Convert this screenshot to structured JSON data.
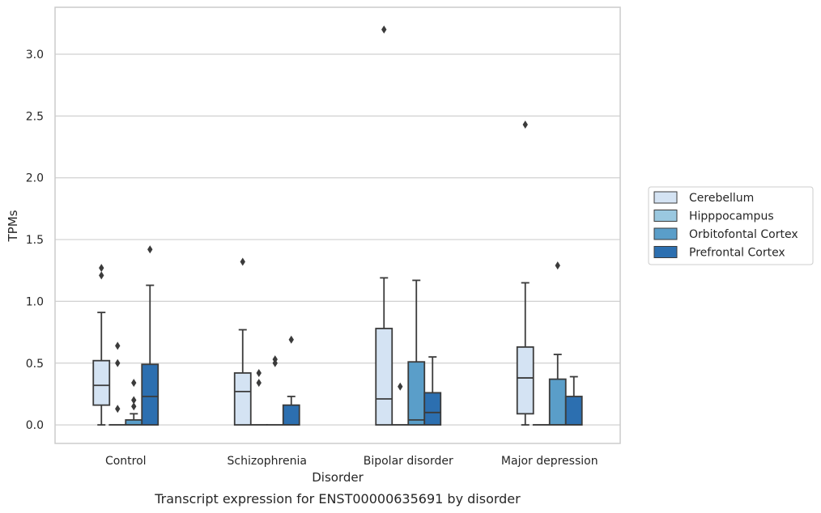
{
  "chart_data": {
    "type": "box",
    "title": "Transcript expression for ENST00000635691 by disorder",
    "xlabel": "Disorder",
    "ylabel": "TPMs",
    "ylim": [
      -0.15,
      3.38
    ],
    "yticks": [
      0.0,
      0.5,
      1.0,
      1.5,
      2.0,
      2.5,
      3.0
    ],
    "ytick_labels": [
      "0.0",
      "0.5",
      "1.0",
      "1.5",
      "2.0",
      "2.5",
      "3.0"
    ],
    "grid": "horizontal",
    "legend_position": "right",
    "categories": [
      "Control",
      "Schizophrenia",
      "Bipolar disorder",
      "Major depression"
    ],
    "series": [
      {
        "name": "Cerebellum",
        "color": "#d4e3f3",
        "boxes": [
          {
            "whislo": 0.0,
            "q1": 0.16,
            "med": 0.32,
            "q3": 0.52,
            "whishi": 0.91,
            "fliers": [
              1.21,
              1.27
            ]
          },
          {
            "whislo": 0.0,
            "q1": 0.0,
            "med": 0.27,
            "q3": 0.42,
            "whishi": 0.77,
            "fliers": [
              1.32
            ]
          },
          {
            "whislo": 0.0,
            "q1": 0.0,
            "med": 0.21,
            "q3": 0.78,
            "whishi": 1.19,
            "fliers": [
              3.2
            ]
          },
          {
            "whislo": 0.0,
            "q1": 0.09,
            "med": 0.38,
            "q3": 0.63,
            "whishi": 1.15,
            "fliers": [
              2.43
            ]
          }
        ]
      },
      {
        "name": "Hipppocampus",
        "color": "#9ac8e0",
        "boxes": [
          {
            "whislo": 0.0,
            "q1": 0.0,
            "med": 0.0,
            "q3": 0.0,
            "whishi": 0.0,
            "fliers": [
              0.13,
              0.5,
              0.64
            ]
          },
          {
            "whislo": 0.0,
            "q1": 0.0,
            "med": 0.0,
            "q3": 0.0,
            "whishi": 0.0,
            "fliers": [
              0.34,
              0.42
            ]
          },
          {
            "whislo": 0.0,
            "q1": 0.0,
            "med": 0.0,
            "q3": 0.0,
            "whishi": 0.0,
            "fliers": [
              0.31
            ]
          },
          {
            "whislo": 0.0,
            "q1": 0.0,
            "med": 0.0,
            "q3": 0.0,
            "whishi": 0.0,
            "fliers": []
          }
        ]
      },
      {
        "name": "Orbitofontal Cortex",
        "color": "#5a9ec9",
        "boxes": [
          {
            "whislo": 0.0,
            "q1": 0.0,
            "med": 0.0,
            "q3": 0.04,
            "whishi": 0.09,
            "fliers": [
              0.15,
              0.2,
              0.34
            ]
          },
          {
            "whislo": 0.0,
            "q1": 0.0,
            "med": 0.0,
            "q3": 0.0,
            "whishi": 0.0,
            "fliers": [
              0.5,
              0.53
            ]
          },
          {
            "whislo": 0.0,
            "q1": 0.0,
            "med": 0.04,
            "q3": 0.51,
            "whishi": 1.17,
            "fliers": []
          },
          {
            "whislo": 0.0,
            "q1": 0.0,
            "med": 0.0,
            "q3": 0.37,
            "whishi": 0.57,
            "fliers": [
              1.29
            ]
          }
        ]
      },
      {
        "name": "Prefrontal Cortex",
        "color": "#2c6fb0",
        "boxes": [
          {
            "whislo": 0.0,
            "q1": 0.0,
            "med": 0.23,
            "q3": 0.49,
            "whishi": 1.13,
            "fliers": [
              1.42
            ]
          },
          {
            "whislo": 0.0,
            "q1": 0.0,
            "med": 0.0,
            "q3": 0.16,
            "whishi": 0.23,
            "fliers": [
              0.69
            ]
          },
          {
            "whislo": 0.0,
            "q1": 0.0,
            "med": 0.1,
            "q3": 0.26,
            "whishi": 0.55,
            "fliers": []
          },
          {
            "whislo": 0.0,
            "q1": 0.0,
            "med": 0.0,
            "q3": 0.23,
            "whishi": 0.39,
            "fliers": []
          }
        ]
      }
    ]
  }
}
